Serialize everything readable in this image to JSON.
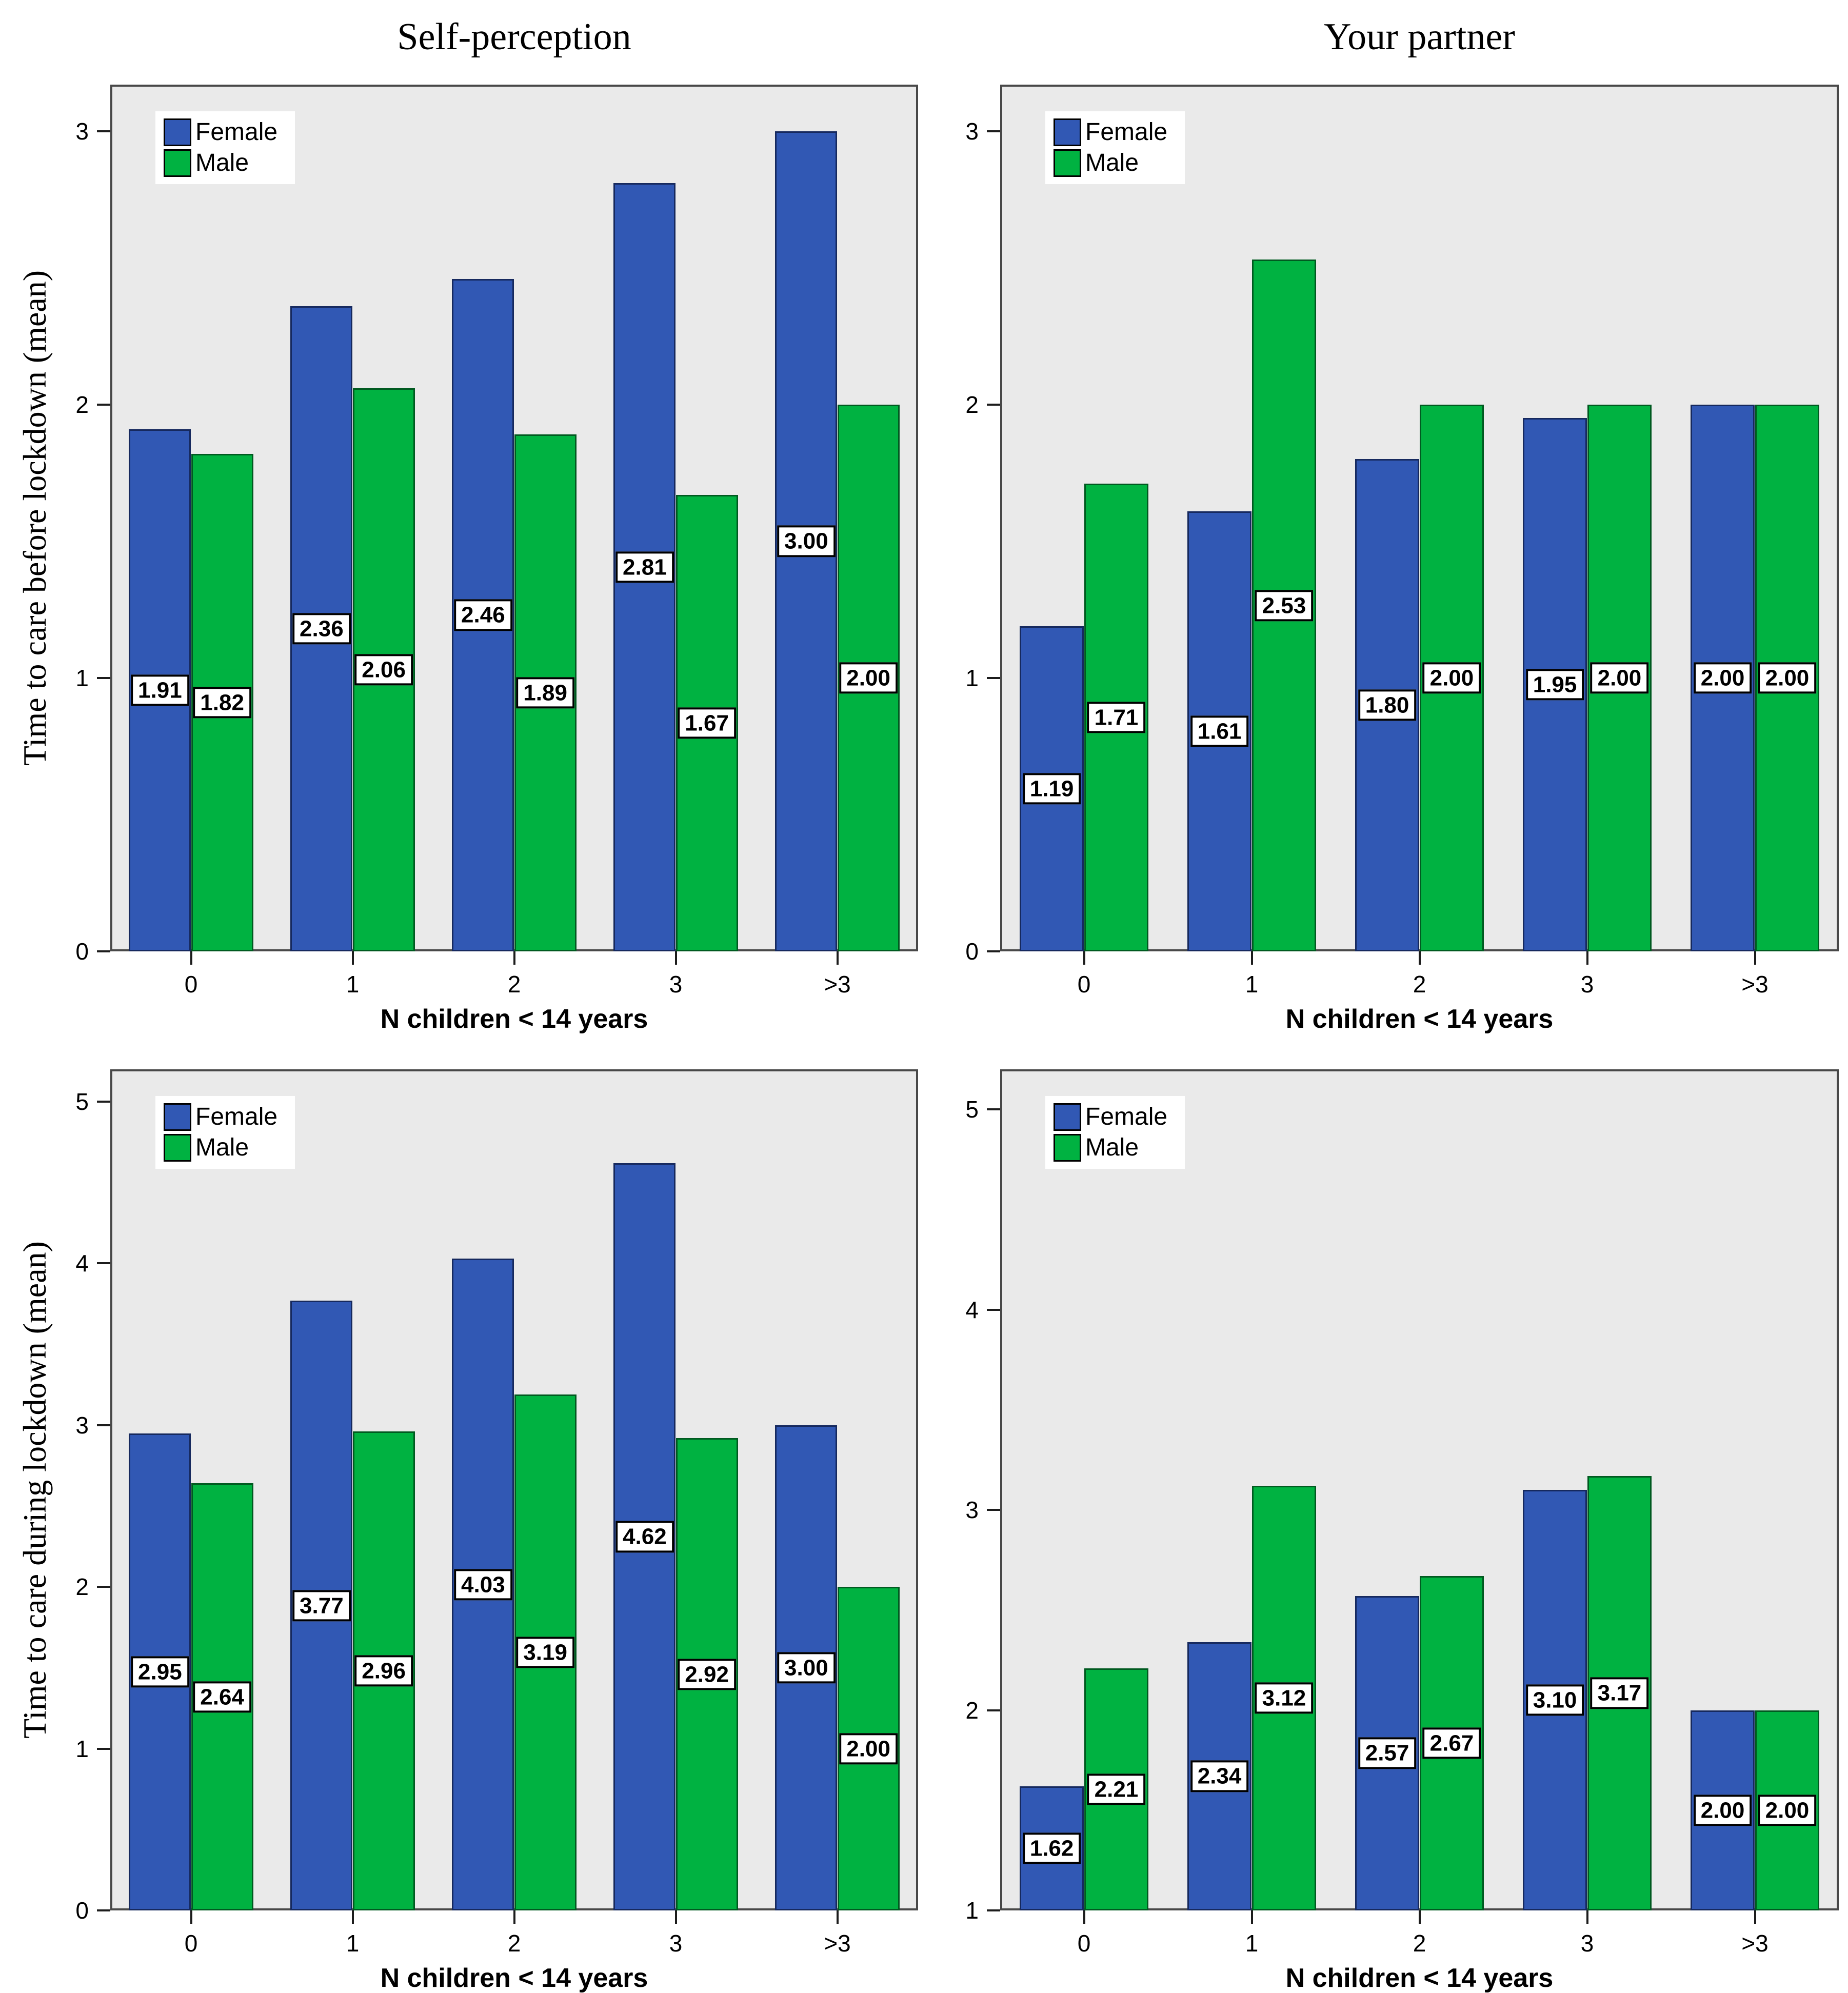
{
  "colors": {
    "female": "#3158b4",
    "male": "#00b241",
    "female_border": "#16295e",
    "male_border": "#005a20",
    "plot_bg": "#eaeaea",
    "plot_border": "#484848",
    "tick": "#1c1c1c",
    "label_box_bg": "#ffffff",
    "label_box_border": "#000000"
  },
  "legend": {
    "items": [
      {
        "label": "Female",
        "color_key": "female"
      },
      {
        "label": "Male",
        "color_key": "male"
      }
    ]
  },
  "chart_data": [
    {
      "id": "top-left",
      "type": "bar",
      "title": "Self-perception",
      "ylabel": "Time to care before lockdown (mean)",
      "xlabel": "N children < 14 years",
      "categories": [
        "0",
        "1",
        "2",
        "3",
        ">3"
      ],
      "series": [
        {
          "name": "Female",
          "color_key": "female",
          "values": [
            1.91,
            2.36,
            2.46,
            2.81,
            3.0
          ],
          "value_labels": [
            "1.91",
            "2.36",
            "2.46",
            "2.81",
            "3.00"
          ]
        },
        {
          "name": "Male",
          "color_key": "male",
          "values": [
            1.82,
            2.06,
            1.89,
            1.67,
            2.0
          ],
          "value_labels": [
            "1.82",
            "2.06",
            "1.89",
            "1.67",
            "2.00"
          ]
        }
      ],
      "ylim": [
        0,
        3.17
      ],
      "yticks": [
        0,
        1,
        2,
        3
      ],
      "ytick_labels": [
        "0",
        "1",
        "2",
        "3"
      ],
      "legend_position": "top-left-inside",
      "grid": false
    },
    {
      "id": "top-right",
      "type": "bar",
      "title": "Your partner",
      "ylabel": null,
      "xlabel": "N children < 14 years",
      "categories": [
        "0",
        "1",
        "2",
        "3",
        ">3"
      ],
      "series": [
        {
          "name": "Female",
          "color_key": "female",
          "values": [
            1.19,
            1.61,
            1.8,
            1.95,
            2.0
          ],
          "value_labels": [
            "1.19",
            "1.61",
            "1.80",
            "1.95",
            "2.00"
          ]
        },
        {
          "name": "Male",
          "color_key": "male",
          "values": [
            1.71,
            2.53,
            2.0,
            2.0,
            2.0
          ],
          "value_labels": [
            "1.71",
            "2.53",
            "2.00",
            "2.00",
            "2.00"
          ]
        }
      ],
      "ylim": [
        0,
        3.17
      ],
      "yticks": [
        0,
        1,
        2,
        3
      ],
      "ytick_labels": [
        "0",
        "1",
        "2",
        "3"
      ],
      "legend_position": "top-left-inside",
      "grid": false
    },
    {
      "id": "bottom-left",
      "type": "bar",
      "title": null,
      "ylabel": "Time to care during lockdown (mean)",
      "xlabel": "N children < 14 years",
      "categories": [
        "0",
        "1",
        "2",
        "3",
        ">3"
      ],
      "series": [
        {
          "name": "Female",
          "color_key": "female",
          "values": [
            2.95,
            3.77,
            4.03,
            4.62,
            3.0
          ],
          "value_labels": [
            "2.95",
            "3.77",
            "4.03",
            "4.62",
            "3.00"
          ]
        },
        {
          "name": "Male",
          "color_key": "male",
          "values": [
            2.64,
            2.96,
            3.19,
            2.92,
            2.0
          ],
          "value_labels": [
            "2.64",
            "2.96",
            "3.19",
            "2.92",
            "2.00"
          ]
        }
      ],
      "ylim": [
        0,
        5.2
      ],
      "yticks": [
        0,
        1,
        2,
        3,
        4,
        5
      ],
      "ytick_labels": [
        "0",
        "1",
        "2",
        "3",
        "4",
        "5"
      ],
      "legend_position": "top-left-inside",
      "grid": false
    },
    {
      "id": "bottom-right",
      "type": "bar",
      "title": null,
      "ylabel": null,
      "xlabel": "N children < 14 years",
      "categories": [
        "0",
        "1",
        "2",
        "3",
        ">3"
      ],
      "series": [
        {
          "name": "Female",
          "color_key": "female",
          "values": [
            1.62,
            2.34,
            2.57,
            3.1,
            2.0
          ],
          "value_labels": [
            "1.62",
            "2.34",
            "2.57",
            "3.10",
            "2.00"
          ]
        },
        {
          "name": "Male",
          "color_key": "male",
          "values": [
            2.21,
            3.12,
            2.67,
            3.17,
            2.0
          ],
          "value_labels": [
            "2.21",
            "3.12",
            "2.67",
            "3.17",
            "2.00"
          ]
        }
      ],
      "ylim": [
        1,
        5.2
      ],
      "yticks": [
        1,
        2,
        3,
        4,
        5
      ],
      "ytick_labels": [
        "1",
        "2",
        "3",
        "4",
        "5"
      ],
      "legend_position": "top-left-inside",
      "grid": false
    }
  ]
}
